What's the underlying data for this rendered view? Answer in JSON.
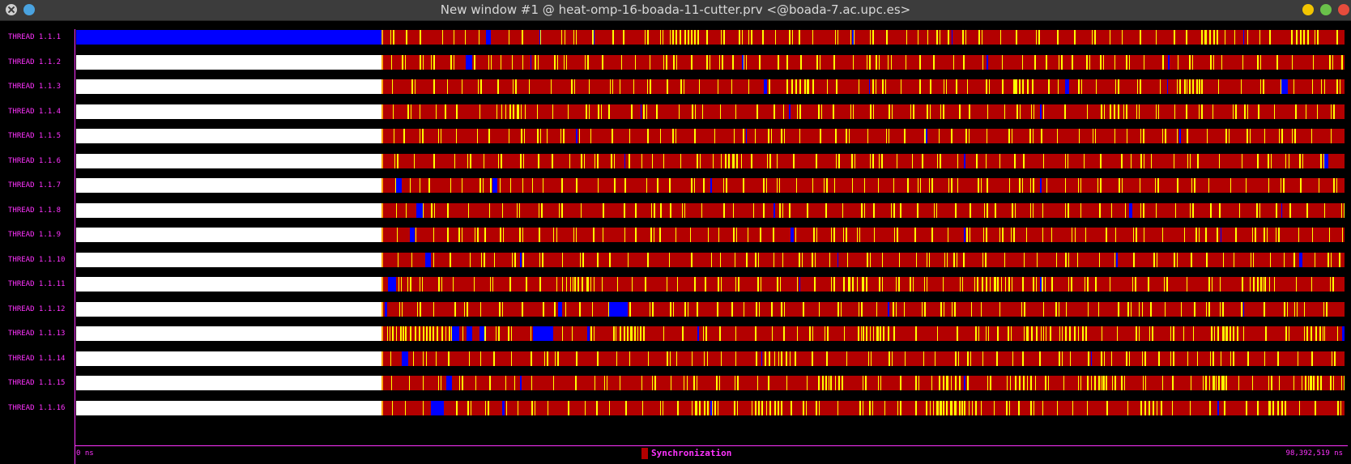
{
  "window": {
    "title": "New window #1 @ heat-omp-16-boada-11-cutter.prv <@boada-7.ac.upc.es>"
  },
  "colors": {
    "background": "#000000",
    "text_accent": "#ff33ff",
    "idle": "#ffffff",
    "running": "#0000ff",
    "synchronization": "#b30000",
    "event": "#ffff00",
    "flag": "#ffa500"
  },
  "timeline": {
    "start_label": "0 ns",
    "end_label": "98,392,519 ns",
    "start_ns": 0,
    "end_ns": 98392519,
    "legend": [
      {
        "label": "Synchronization",
        "color": "#b30000"
      }
    ],
    "threads": [
      {
        "label": "THREAD 1.1.1",
        "initial_state": "running",
        "init_end": 0.241,
        "blue": [
          [
            0.323,
            0.004
          ],
          [
            0.365,
            0.001
          ],
          [
            0.408,
            0.001
          ],
          [
            0.612,
            0.001
          ],
          [
            0.69,
            0.001
          ],
          [
            0.92,
            0.001
          ]
        ],
        "yellow_clusters": [
          [
            0.47,
            0.02
          ],
          [
            0.887,
            0.016
          ],
          [
            0.958,
            0.015
          ]
        ]
      },
      {
        "label": "THREAD 1.1.2",
        "initial_state": "idle",
        "init_end": 0.241,
        "blue": [
          [
            0.307,
            0.005
          ],
          [
            0.358,
            0.001
          ],
          [
            0.525,
            0.001
          ],
          [
            0.718,
            0.001
          ],
          [
            0.861,
            0.001
          ]
        ],
        "yellow_clusters": []
      },
      {
        "label": "THREAD 1.1.3",
        "initial_state": "idle",
        "init_end": 0.241,
        "blue": [
          [
            0.542,
            0.003
          ],
          [
            0.625,
            0.001
          ],
          [
            0.78,
            0.003
          ],
          [
            0.86,
            0.001
          ],
          [
            0.95,
            0.005
          ]
        ],
        "yellow_clusters": [
          [
            0.56,
            0.022
          ],
          [
            0.74,
            0.016
          ],
          [
            0.87,
            0.018
          ]
        ]
      },
      {
        "label": "THREAD 1.1.4",
        "initial_state": "idle",
        "init_end": 0.241,
        "blue": [
          [
            0.445,
            0.001
          ],
          [
            0.562,
            0.001
          ],
          [
            0.76,
            0.001
          ]
        ],
        "yellow_clusters": [
          [
            0.335,
            0.02
          ],
          [
            0.815,
            0.014
          ]
        ]
      },
      {
        "label": "THREAD 1.1.5",
        "initial_state": "idle",
        "init_end": 0.241,
        "blue": [
          [
            0.394,
            0.001
          ],
          [
            0.528,
            0.001
          ],
          [
            0.67,
            0.001
          ],
          [
            0.87,
            0.001
          ]
        ],
        "yellow_clusters": []
      },
      {
        "label": "THREAD 1.1.6",
        "initial_state": "idle",
        "init_end": 0.241,
        "blue": [
          [
            0.432,
            0.001
          ],
          [
            0.7,
            0.001
          ],
          [
            0.984,
            0.003
          ]
        ],
        "yellow_clusters": [
          [
            0.508,
            0.018
          ]
        ]
      },
      {
        "label": "THREAD 1.1.7",
        "initial_state": "idle",
        "init_end": 0.241,
        "blue": [
          [
            0.252,
            0.005
          ],
          [
            0.328,
            0.004
          ],
          [
            0.5,
            0.001
          ],
          [
            0.76,
            0.001
          ]
        ],
        "yellow_clusters": []
      },
      {
        "label": "THREAD 1.1.8",
        "initial_state": "idle",
        "init_end": 0.241,
        "blue": [
          [
            0.268,
            0.005
          ],
          [
            0.55,
            0.001
          ],
          [
            0.83,
            0.003
          ],
          [
            0.95,
            0.001
          ]
        ],
        "yellow_clusters": []
      },
      {
        "label": "THREAD 1.1.9",
        "initial_state": "idle",
        "init_end": 0.241,
        "blue": [
          [
            0.263,
            0.004
          ],
          [
            0.563,
            0.003
          ],
          [
            0.7,
            0.001
          ],
          [
            0.902,
            0.001
          ]
        ],
        "yellow_clusters": []
      },
      {
        "label": "THREAD 1.1.10",
        "initial_state": "idle",
        "init_end": 0.241,
        "blue": [
          [
            0.275,
            0.005
          ],
          [
            0.35,
            0.001
          ],
          [
            0.6,
            0.001
          ],
          [
            0.82,
            0.001
          ],
          [
            0.964,
            0.003
          ]
        ],
        "yellow_clusters": []
      },
      {
        "label": "THREAD 1.1.11",
        "initial_state": "idle",
        "init_end": 0.241,
        "blue": [
          [
            0.246,
            0.006
          ],
          [
            0.57,
            0.001
          ],
          [
            0.76,
            0.001
          ]
        ],
        "yellow_clusters": [
          [
            0.383,
            0.026
          ],
          [
            0.605,
            0.018
          ],
          [
            0.714,
            0.02
          ],
          [
            0.925,
            0.018
          ]
        ]
      },
      {
        "label": "THREAD 1.1.12",
        "initial_state": "idle",
        "init_end": 0.241,
        "blue": [
          [
            0.243,
            0.002
          ],
          [
            0.38,
            0.003
          ],
          [
            0.42,
            0.015
          ],
          [
            0.64,
            0.001
          ],
          [
            0.92,
            0.001
          ]
        ],
        "yellow_clusters": []
      },
      {
        "label": "THREAD 1.1.13",
        "initial_state": "idle",
        "init_end": 0.241,
        "blue": [
          [
            0.296,
            0.006
          ],
          [
            0.308,
            0.004
          ],
          [
            0.318,
            0.004
          ],
          [
            0.36,
            0.016
          ],
          [
            0.403,
            0.002
          ],
          [
            0.49,
            0.001
          ],
          [
            0.998,
            0.002
          ]
        ],
        "yellow_clusters": [
          [
            0.245,
            0.05
          ],
          [
            0.425,
            0.02
          ],
          [
            0.62,
            0.02
          ],
          [
            0.75,
            0.018
          ],
          [
            0.78,
            0.016
          ],
          [
            0.9,
            0.016
          ],
          [
            0.97,
            0.015
          ]
        ]
      },
      {
        "label": "THREAD 1.1.14",
        "initial_state": "idle",
        "init_end": 0.241,
        "blue": [
          [
            0.257,
            0.005
          ],
          [
            0.54,
            0.001
          ],
          [
            0.8,
            0.001
          ]
        ],
        "yellow_clusters": [
          [
            0.543,
            0.02
          ]
        ]
      },
      {
        "label": "THREAD 1.1.15",
        "initial_state": "idle",
        "init_end": 0.241,
        "blue": [
          [
            0.292,
            0.004
          ],
          [
            0.35,
            0.001
          ],
          [
            0.7,
            0.001
          ]
        ],
        "yellow_clusters": [
          [
            0.585,
            0.02
          ],
          [
            0.68,
            0.02
          ],
          [
            0.74,
            0.018
          ],
          [
            0.797,
            0.016
          ],
          [
            0.89,
            0.018
          ],
          [
            0.966,
            0.016
          ]
        ]
      },
      {
        "label": "THREAD 1.1.16",
        "initial_state": "idle",
        "init_end": 0.241,
        "blue": [
          [
            0.28,
            0.01
          ],
          [
            0.336,
            0.002
          ],
          [
            0.5,
            0.001
          ],
          [
            0.9,
            0.001
          ]
        ],
        "yellow_clusters": [
          [
            0.485,
            0.018
          ],
          [
            0.535,
            0.02
          ],
          [
            0.67,
            0.04
          ],
          [
            0.839,
            0.016
          ],
          [
            0.94,
            0.015
          ]
        ]
      }
    ]
  }
}
